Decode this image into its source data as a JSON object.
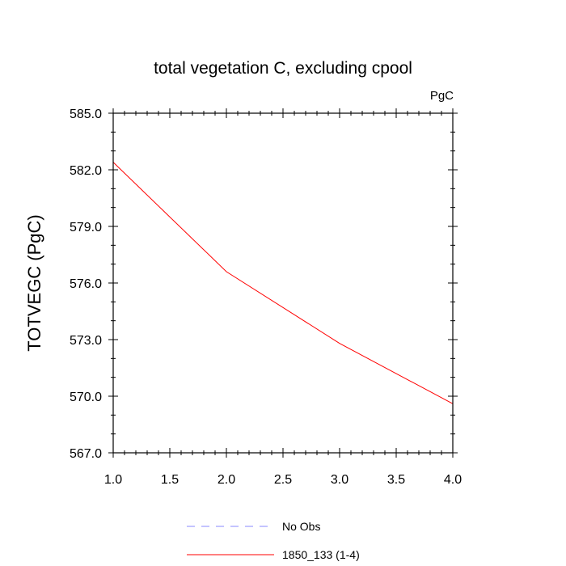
{
  "chart_data": {
    "type": "line",
    "title": "total vegetation C, excluding cpool",
    "units_label": "PgC",
    "xlabel": "",
    "ylabel": "TOTVEGC  (PgC)",
    "xlim": [
      1.0,
      4.0
    ],
    "ylim": [
      567.0,
      585.0
    ],
    "x_ticks": [
      "1.0",
      "1.5",
      "2.0",
      "2.5",
      "3.0",
      "3.5",
      "4.0"
    ],
    "y_ticks": [
      "567.0",
      "570.0",
      "573.0",
      "576.0",
      "579.0",
      "582.0",
      "585.0"
    ],
    "grid": false,
    "legend_position": "bottom",
    "series": [
      {
        "name": "No Obs",
        "color": "#8888ff",
        "dash": "dashed",
        "x": [],
        "y": []
      },
      {
        "name": "1850_133 (1-4)",
        "color": "#ff0000",
        "dash": "solid",
        "x": [
          1.0,
          2.0,
          3.0,
          4.0
        ],
        "y": [
          582.4,
          576.6,
          572.8,
          569.6
        ]
      }
    ]
  }
}
